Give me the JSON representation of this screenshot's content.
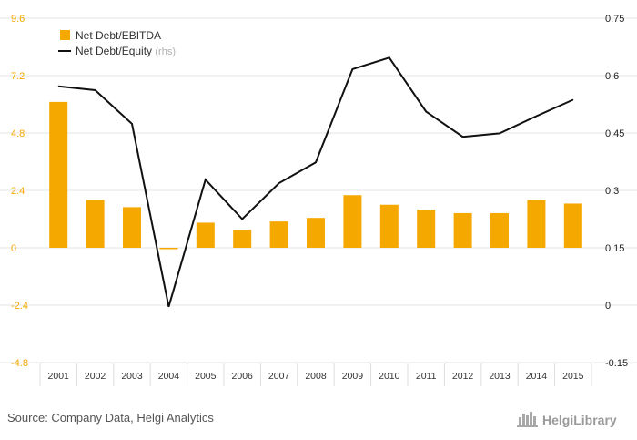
{
  "chart_data": {
    "type": "bar",
    "categories": [
      "2001",
      "2002",
      "2003",
      "2004",
      "2005",
      "2006",
      "2007",
      "2008",
      "2009",
      "2010",
      "2011",
      "2012",
      "2013",
      "2014",
      "2015"
    ],
    "series": [
      {
        "name": "Net Debt/EBITDA",
        "type": "bar",
        "axis": "left",
        "color": "#f5a800",
        "values": [
          6.1,
          2.0,
          1.7,
          -0.05,
          1.05,
          0.75,
          1.1,
          1.25,
          2.2,
          1.8,
          1.6,
          1.45,
          1.45,
          2.0,
          1.85
        ]
      },
      {
        "name": "Net Debt/Equity",
        "name_suffix": "(rhs)",
        "type": "line",
        "axis": "right",
        "color": "#111111",
        "values": [
          0.572,
          0.562,
          0.474,
          -0.004,
          0.328,
          0.225,
          0.319,
          0.373,
          0.617,
          0.647,
          0.506,
          0.44,
          0.449,
          0.494,
          0.537
        ]
      }
    ],
    "y_left": {
      "ylim": [
        -4.8,
        9.6
      ],
      "ticks": [
        "9.6",
        "7.2",
        "4.8",
        "2.4",
        "0",
        "-2.4",
        "-4.8"
      ],
      "tick_values": [
        9.6,
        7.2,
        4.8,
        2.4,
        0,
        -2.4,
        -4.8
      ],
      "color": "#f5a800"
    },
    "y_right": {
      "ylim": [
        -0.15,
        0.75
      ],
      "ticks": [
        "0.75",
        "0.6",
        "0.45",
        "0.3",
        "0.15",
        "0",
        "-0.15"
      ],
      "tick_values": [
        0.75,
        0.6,
        0.45,
        0.3,
        0.15,
        0,
        -0.15
      ],
      "color": "#222222"
    },
    "grid": true,
    "legend_position": "top-left"
  },
  "footer": {
    "source": "Source: Company Data, Helgi Analytics",
    "brand": "HelgiLibrary",
    "brand_icon": "city-skyline-icon"
  }
}
